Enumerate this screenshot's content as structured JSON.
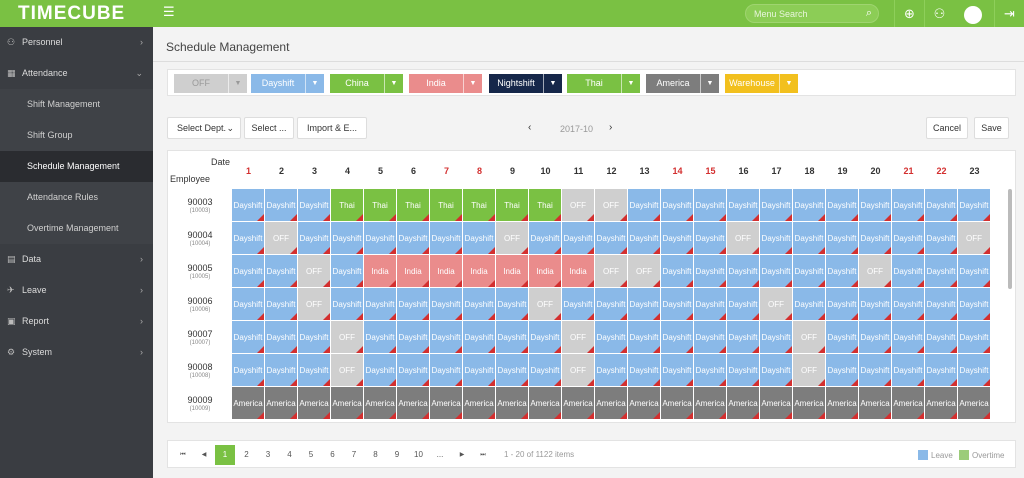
{
  "app": {
    "logo": "TIMECUBE"
  },
  "header": {
    "search_placeholder": "Menu Search"
  },
  "sidebar": {
    "items": [
      {
        "label": "Personnel",
        "icon": "person-icon"
      },
      {
        "label": "Attendance",
        "icon": "calendar-icon"
      },
      {
        "label": "Data",
        "icon": "data-icon"
      },
      {
        "label": "Leave",
        "icon": "plane-icon"
      },
      {
        "label": "Report",
        "icon": "report-icon"
      },
      {
        "label": "System",
        "icon": "gear-icon"
      }
    ],
    "subitems": [
      "Shift Management",
      "Shift Group",
      "Schedule Management",
      "Attendance Rules",
      "Overtime Management"
    ],
    "active": "Schedule Management"
  },
  "page": {
    "title": "Schedule Management"
  },
  "shifts": [
    {
      "label": "OFF",
      "color": "#cfcfcf"
    },
    {
      "label": "Dayshift",
      "color": "#8ab9e8"
    },
    {
      "label": "China",
      "color": "#7ac143"
    },
    {
      "label": "India",
      "color": "#ea8c8c"
    },
    {
      "label": "Nightshift",
      "color": "#16274a"
    },
    {
      "label": "Thai",
      "color": "#7ac143"
    },
    {
      "label": "America",
      "color": "#7d7d7d"
    },
    {
      "label": "Warehouse",
      "color": "#f2c01e"
    }
  ],
  "toolbar": {
    "select_dept": "Select Dept.",
    "select": "Select ...",
    "import": "Import & E...",
    "month": "2017-10",
    "cancel": "Cancel",
    "save": "Save"
  },
  "grid": {
    "date_label": "Date",
    "employee_label": "Employee",
    "days": [
      "1",
      "2",
      "3",
      "4",
      "5",
      "6",
      "7",
      "8",
      "9",
      "10",
      "11",
      "12",
      "13",
      "14",
      "15",
      "16",
      "17",
      "18",
      "19",
      "20",
      "21",
      "22",
      "23"
    ],
    "red_days": [
      "1",
      "7",
      "8",
      "14",
      "15",
      "21",
      "22"
    ],
    "employees": [
      {
        "id": "90003",
        "code": "(10003)",
        "cells": [
          "Dayshift",
          "Dayshift",
          "Dayshift",
          "Thai",
          "Thai",
          "Thai",
          "Thai",
          "Thai",
          "Thai",
          "Thai",
          "OFF",
          "OFF",
          "Dayshift",
          "Dayshift",
          "Dayshift",
          "Dayshift",
          "Dayshift",
          "Dayshift",
          "Dayshift",
          "Dayshift",
          "Dayshift",
          "Dayshift",
          "Dayshift"
        ]
      },
      {
        "id": "90004",
        "code": "(10004)",
        "cells": [
          "Dayshift",
          "OFF",
          "Dayshift",
          "Dayshift",
          "Dayshift",
          "Dayshift",
          "Dayshift",
          "Dayshift",
          "OFF",
          "Dayshift",
          "Dayshift",
          "Dayshift",
          "Dayshift",
          "Dayshift",
          "Dayshift",
          "OFF",
          "Dayshift",
          "Dayshift",
          "Dayshift",
          "Dayshift",
          "Dayshift",
          "Dayshift",
          "OFF"
        ]
      },
      {
        "id": "90005",
        "code": "(10005)",
        "cells": [
          "Dayshift",
          "Dayshift",
          "OFF",
          "Dayshift",
          "India",
          "India",
          "India",
          "India",
          "India",
          "India",
          "India",
          "OFF",
          "OFF",
          "Dayshift",
          "Dayshift",
          "Dayshift",
          "Dayshift",
          "Dayshift",
          "Dayshift",
          "OFF",
          "Dayshift",
          "Dayshift",
          "Dayshift"
        ]
      },
      {
        "id": "90006",
        "code": "(10006)",
        "cells": [
          "Dayshift",
          "Dayshift",
          "OFF",
          "Dayshift",
          "Dayshift",
          "Dayshift",
          "Dayshift",
          "Dayshift",
          "Dayshift",
          "OFF",
          "Dayshift",
          "Dayshift",
          "Dayshift",
          "Dayshift",
          "Dayshift",
          "Dayshift",
          "OFF",
          "Dayshift",
          "Dayshift",
          "Dayshift",
          "Dayshift",
          "Dayshift",
          "Dayshift"
        ]
      },
      {
        "id": "90007",
        "code": "(10007)",
        "cells": [
          "Dayshift",
          "Dayshift",
          "Dayshift",
          "OFF",
          "Dayshift",
          "Dayshift",
          "Dayshift",
          "Dayshift",
          "Dayshift",
          "Dayshift",
          "OFF",
          "Dayshift",
          "Dayshift",
          "Dayshift",
          "Dayshift",
          "Dayshift",
          "Dayshift",
          "OFF",
          "Dayshift",
          "Dayshift",
          "Dayshift",
          "Dayshift",
          "Dayshift"
        ]
      },
      {
        "id": "90008",
        "code": "(10008)",
        "cells": [
          "Dayshift",
          "Dayshift",
          "Dayshift",
          "OFF",
          "Dayshift",
          "Dayshift",
          "Dayshift",
          "Dayshift",
          "Dayshift",
          "Dayshift",
          "OFF",
          "Dayshift",
          "Dayshift",
          "Dayshift",
          "Dayshift",
          "Dayshift",
          "Dayshift",
          "OFF",
          "Dayshift",
          "Dayshift",
          "Dayshift",
          "Dayshift",
          "Dayshift"
        ]
      },
      {
        "id": "90009",
        "code": "(10009)",
        "cells": [
          "America",
          "America",
          "America",
          "America",
          "America",
          "America",
          "America",
          "America",
          "America",
          "America",
          "America",
          "America",
          "America",
          "America",
          "America",
          "America",
          "America",
          "America",
          "America",
          "America",
          "America",
          "America",
          "America"
        ]
      }
    ]
  },
  "pager": {
    "pages": [
      "1",
      "2",
      "3",
      "4",
      "5",
      "6",
      "7",
      "8",
      "9",
      "10",
      "..."
    ],
    "active": "1",
    "info": "1 - 20 of 1122 items"
  },
  "legend": {
    "leave": "Leave",
    "overtime": "Overtime",
    "leave_color": "#8ab9e8",
    "overtime_color": "#9ccc7a"
  }
}
